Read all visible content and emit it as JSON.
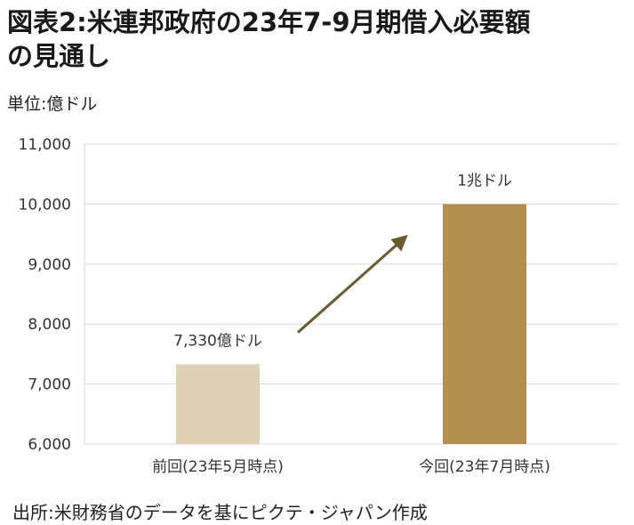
{
  "title_line1": "図表2:米連邦政府の23年7-9月期借入必要額",
  "title_line2": "の見通し",
  "unit": "単位:億ドル",
  "source": "出所:米財務省のデータを基にピクテ・ジャパン作成",
  "colors": {
    "bar_previous": "#dfd1b6",
    "bar_current": "#b38e4e",
    "arrow": "#6b5a2e",
    "grid": "#d9d9d9"
  },
  "chart_data": {
    "type": "bar",
    "title": "図表2:米連邦政府の23年7-9月期借入必要額の見通し",
    "ylabel": "単位:億ドル",
    "ylim": [
      6000,
      11000
    ],
    "yticks": [
      6000,
      7000,
      8000,
      9000,
      10000,
      11000
    ],
    "ytick_labels": [
      "6,000",
      "7,000",
      "8,000",
      "9,000",
      "10,000",
      "11,000"
    ],
    "categories": [
      "前回(23年5月時点)",
      "今回(23年7月時点)"
    ],
    "values": [
      7330,
      10000
    ],
    "data_labels": [
      "7,330億ドル",
      "1兆ドル"
    ],
    "grid": true,
    "legend": "none",
    "annotation": "arrow from previous bar to current bar (upward)"
  }
}
